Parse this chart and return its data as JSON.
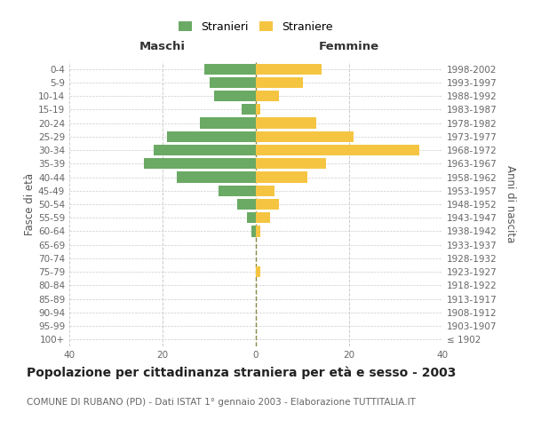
{
  "age_groups": [
    "100+",
    "95-99",
    "90-94",
    "85-89",
    "80-84",
    "75-79",
    "70-74",
    "65-69",
    "60-64",
    "55-59",
    "50-54",
    "45-49",
    "40-44",
    "35-39",
    "30-34",
    "25-29",
    "20-24",
    "15-19",
    "10-14",
    "5-9",
    "0-4"
  ],
  "birth_years": [
    "≤ 1902",
    "1903-1907",
    "1908-1912",
    "1913-1917",
    "1918-1922",
    "1923-1927",
    "1928-1932",
    "1933-1937",
    "1938-1942",
    "1943-1947",
    "1948-1952",
    "1953-1957",
    "1958-1962",
    "1963-1967",
    "1968-1972",
    "1973-1977",
    "1978-1982",
    "1983-1987",
    "1988-1992",
    "1993-1997",
    "1998-2002"
  ],
  "males": [
    0,
    0,
    0,
    0,
    0,
    0,
    0,
    0,
    1,
    2,
    4,
    8,
    17,
    24,
    22,
    19,
    12,
    3,
    9,
    10,
    11
  ],
  "females": [
    0,
    0,
    0,
    0,
    0,
    1,
    0,
    0,
    1,
    3,
    5,
    4,
    11,
    15,
    35,
    21,
    13,
    1,
    5,
    10,
    14
  ],
  "male_color": "#6aaa64",
  "female_color": "#f5c542",
  "bar_height": 0.8,
  "xlim": 40,
  "xlabel_left": "Maschi",
  "xlabel_right": "Femmine",
  "ylabel_left": "Fasce di età",
  "ylabel_right": "Anni di nascita",
  "legend_male": "Stranieri",
  "legend_female": "Straniere",
  "title": "Popolazione per cittadinanza straniera per età e sesso - 2003",
  "subtitle": "COMUNE DI RUBANO (PD) - Dati ISTAT 1° gennaio 2003 - Elaborazione TUTTITALIA.IT",
  "title_fontsize": 10,
  "subtitle_fontsize": 7.5,
  "tick_fontsize": 7.5,
  "label_fontsize": 8.5,
  "background_color": "#ffffff",
  "grid_color": "#cccccc"
}
